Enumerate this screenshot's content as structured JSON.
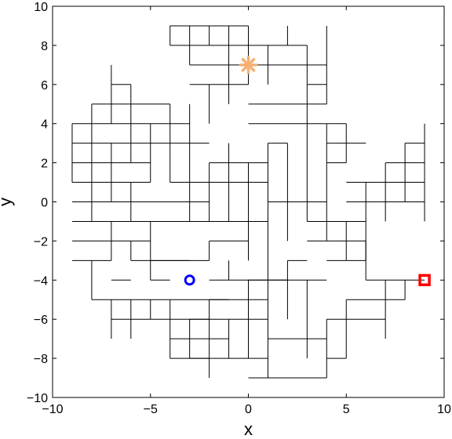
{
  "chart_data": {
    "type": "scatter",
    "xlabel": "x",
    "ylabel": "y",
    "xlim": [
      -10,
      10
    ],
    "ylim": [
      -10,
      10
    ],
    "x_ticks": [
      -10,
      -5,
      0,
      5,
      10
    ],
    "y_ticks": [
      -10,
      -8,
      -6,
      -4,
      -2,
      0,
      2,
      4,
      6,
      8,
      10
    ],
    "x_tick_labels": [
      "−10",
      "−5",
      "0",
      "5",
      "10"
    ],
    "y_tick_labels": [
      "−10",
      "−8",
      "−6",
      "−4",
      "−2",
      "0",
      "2",
      "4",
      "6",
      "8",
      "10"
    ],
    "grid": false,
    "markers": [
      {
        "x": 0,
        "y": 7,
        "shape": "asterisk",
        "color": "#F5B072"
      },
      {
        "x": -3,
        "y": -4,
        "shape": "circle",
        "color": "#0000FF"
      },
      {
        "x": 9,
        "y": -4,
        "shape": "square",
        "color": "#FF0000"
      }
    ],
    "segments": [
      [
        -4,
        9,
        0,
        9
      ],
      [
        -4,
        8,
        -2,
        8
      ],
      [
        -2,
        8,
        0,
        8
      ],
      [
        -3,
        7,
        0,
        7
      ],
      [
        -3,
        6,
        0,
        6
      ],
      [
        0,
        8,
        3,
        8
      ],
      [
        0,
        7,
        4,
        7
      ],
      [
        3,
        6,
        4,
        6
      ],
      [
        0,
        5,
        4,
        5
      ],
      [
        0,
        4,
        4,
        4
      ],
      [
        -6,
        6,
        -7,
        6
      ],
      [
        -8,
        5,
        -4,
        5
      ],
      [
        -9,
        4,
        -3,
        4
      ],
      [
        -9,
        3,
        -2,
        3
      ],
      [
        -9,
        2,
        -5,
        2
      ],
      [
        -2,
        2,
        1,
        2
      ],
      [
        -9,
        1,
        -5,
        1
      ],
      [
        -9,
        0,
        -3,
        0
      ],
      [
        -8,
        -1,
        -1,
        -1
      ],
      [
        -9,
        -2,
        -5,
        -2
      ],
      [
        -6,
        -3,
        -2,
        -3
      ],
      [
        -9,
        -3,
        -7,
        -3
      ],
      [
        -2,
        -4,
        4,
        -4
      ],
      [
        -8,
        -5,
        1,
        -5
      ],
      [
        -7,
        -6,
        1,
        -6
      ],
      [
        -4,
        -7,
        -1,
        -7
      ],
      [
        -4,
        -8,
        1,
        -8
      ],
      [
        0,
        -9,
        4,
        -9
      ],
      [
        1,
        -7,
        4,
        -7
      ],
      [
        4,
        -8,
        5,
        -8
      ],
      [
        4,
        -6,
        7,
        -6
      ],
      [
        5,
        -5,
        8,
        -5
      ],
      [
        6,
        -4,
        9,
        -4
      ],
      [
        4,
        -3,
        6,
        -3
      ],
      [
        3,
        -2,
        6,
        -2
      ],
      [
        3,
        -1,
        6,
        -1
      ],
      [
        5,
        0,
        9,
        0
      ],
      [
        5,
        1,
        9,
        1
      ],
      [
        7,
        2,
        9,
        2
      ],
      [
        8,
        3,
        9,
        3
      ],
      [
        4,
        4,
        5,
        4
      ],
      [
        4,
        3,
        6,
        3
      ],
      [
        4,
        2,
        5,
        2
      ],
      [
        1,
        3,
        2,
        3
      ],
      [
        -1,
        1,
        1,
        1
      ],
      [
        -1,
        -1,
        1,
        -1
      ],
      [
        1,
        0,
        4,
        0
      ],
      [
        -2,
        -2,
        0,
        -2
      ],
      [
        0,
        -4,
        2,
        -4
      ],
      [
        2,
        -3,
        3,
        -3
      ],
      [
        -5,
        -3,
        -3,
        -3
      ],
      [
        -2,
        -5,
        -1,
        -5
      ],
      [
        -3,
        -6,
        -2,
        -6
      ],
      [
        -3,
        -8,
        -2,
        -8
      ],
      [
        -9,
        -1,
        -8,
        -1
      ],
      [
        -5,
        0,
        -2,
        0
      ],
      [
        -4,
        1,
        -1,
        1
      ],
      [
        -7,
        -4,
        -6,
        -4
      ],
      [
        -5,
        -4,
        -4,
        -4
      ],
      [
        -4,
        9,
        -4,
        8
      ],
      [
        -3,
        9,
        -3,
        7
      ],
      [
        -2,
        9,
        -2,
        8
      ],
      [
        -1,
        9,
        -1,
        7
      ],
      [
        0,
        9,
        0,
        6
      ],
      [
        2,
        9,
        2,
        8
      ],
      [
        4,
        9,
        4,
        8
      ],
      [
        1,
        8,
        1,
        6
      ],
      [
        3,
        8,
        3,
        5
      ],
      [
        4,
        8,
        4,
        5
      ],
      [
        -1,
        7,
        -1,
        5
      ],
      [
        -2,
        6,
        -2,
        4
      ],
      [
        -3,
        5,
        -3,
        3
      ],
      [
        -4,
        5,
        -4,
        1
      ],
      [
        -7,
        7,
        -7,
        4
      ],
      [
        -6,
        6,
        -6,
        2
      ],
      [
        -8,
        5,
        -8,
        -1
      ],
      [
        -9,
        4,
        -9,
        1
      ],
      [
        -5,
        4,
        -5,
        1
      ],
      [
        -7,
        3,
        -7,
        0
      ],
      [
        -6,
        1,
        -6,
        -1
      ],
      [
        -3,
        3,
        -3,
        -1
      ],
      [
        -2,
        2,
        -2,
        -1
      ],
      [
        -1,
        3,
        -1,
        -1
      ],
      [
        0,
        2,
        0,
        -1
      ],
      [
        1,
        3,
        1,
        -1
      ],
      [
        2,
        3,
        2,
        -2
      ],
      [
        3,
        5,
        3,
        -1
      ],
      [
        4,
        4,
        4,
        -2
      ],
      [
        5,
        4,
        5,
        2
      ],
      [
        6,
        1,
        6,
        -4
      ],
      [
        7,
        2,
        7,
        -1
      ],
      [
        8,
        3,
        8,
        0
      ],
      [
        9,
        4,
        9,
        -1
      ],
      [
        5,
        -1,
        5,
        -3
      ],
      [
        6,
        -3,
        6,
        -2
      ],
      [
        7,
        -4,
        7,
        -7
      ],
      [
        8,
        -4,
        8,
        -5
      ],
      [
        5,
        -5,
        5,
        -8
      ],
      [
        4,
        -6,
        4,
        -9
      ],
      [
        3,
        -4,
        3,
        -8
      ],
      [
        2,
        -4,
        2,
        -6
      ],
      [
        1,
        -2,
        1,
        -9
      ],
      [
        0,
        -4,
        0,
        -8
      ],
      [
        -1,
        -6,
        -1,
        -8
      ],
      [
        -2,
        -5,
        -2,
        -9
      ],
      [
        -3,
        -6,
        -3,
        -8
      ],
      [
        -4,
        -5,
        -4,
        -8
      ],
      [
        -5,
        -5,
        -5,
        -6
      ],
      [
        -6,
        -5,
        -6,
        -7
      ],
      [
        -7,
        -5,
        -7,
        -7
      ],
      [
        -8,
        -3,
        -8,
        -5
      ],
      [
        -6,
        -2,
        -6,
        -3
      ],
      [
        -7,
        -1,
        -7,
        -3
      ],
      [
        -5,
        -1,
        -5,
        -4
      ],
      [
        -2,
        -2,
        -2,
        -3
      ],
      [
        -1,
        -3,
        -1,
        -4
      ],
      [
        0,
        -1,
        0,
        -3
      ],
      [
        1,
        -1,
        1,
        -2
      ],
      [
        2,
        -3,
        2,
        -4
      ]
    ]
  }
}
